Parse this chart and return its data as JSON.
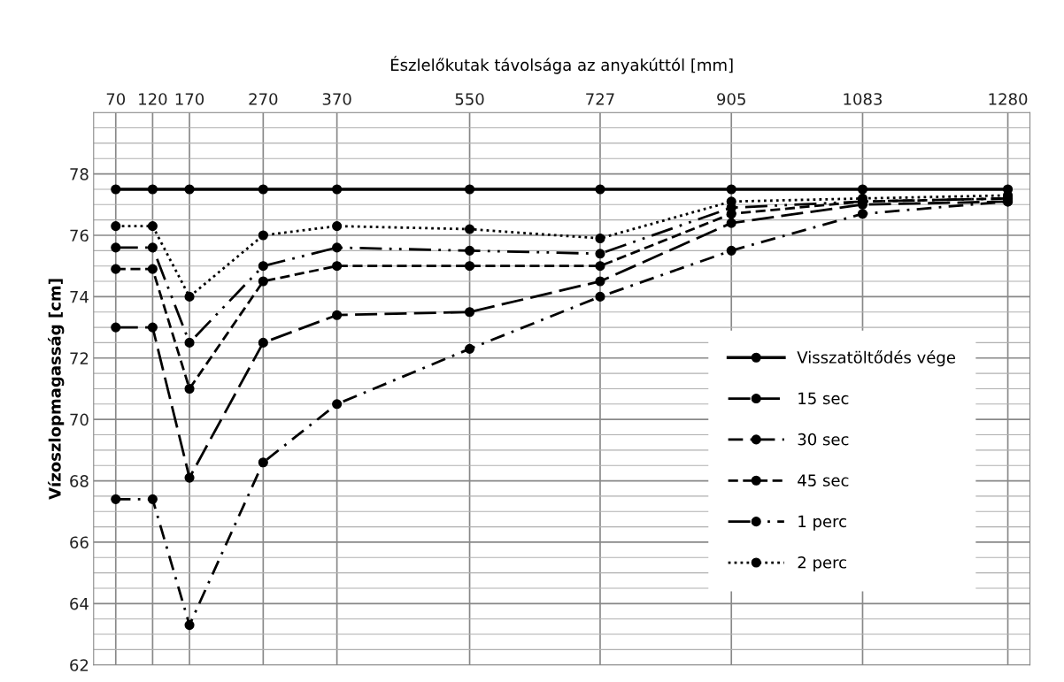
{
  "chart_data": {
    "type": "line",
    "xlabel": "Észlelőkutak távolsága az anyakúttól [mm]",
    "ylabel": "Vízoszlopmagasság [cm]",
    "x": [
      70,
      120,
      170,
      270,
      370,
      550,
      727,
      905,
      1083,
      1280
    ],
    "xlim": [
      40,
      1310
    ],
    "xticks": [
      70,
      120,
      170,
      270,
      370,
      550,
      727,
      905,
      1083,
      1280
    ],
    "ylim": [
      62,
      80
    ],
    "yticks": [
      62,
      64,
      66,
      68,
      70,
      72,
      74,
      76,
      78
    ],
    "grid": true,
    "legend": "lower right",
    "marker": "circle",
    "series": [
      {
        "name": "Visszatöltődés vége",
        "color": "#000000",
        "line_style": "solid",
        "values": [
          77.5,
          77.5,
          77.5,
          77.5,
          77.5,
          77.5,
          77.5,
          77.5,
          77.5,
          77.5
        ]
      },
      {
        "name": "15 sec",
        "color": "#000000",
        "line_style": "longdash",
        "values": [
          73.0,
          73.0,
          68.1,
          72.5,
          73.4,
          73.5,
          74.5,
          76.4,
          77.0,
          77.1
        ]
      },
      {
        "name": "30 sec",
        "color": "#000000",
        "line_style": "dashdot",
        "values": [
          67.4,
          67.4,
          63.3,
          68.6,
          70.5,
          72.3,
          74.0,
          75.5,
          76.7,
          77.1
        ]
      },
      {
        "name": "45 sec",
        "color": "#000000",
        "line_style": "dashed",
        "values": [
          74.9,
          74.9,
          71.0,
          74.5,
          75.0,
          75.0,
          75.0,
          76.7,
          77.1,
          77.2
        ]
      },
      {
        "name": "1 perc",
        "color": "#000000",
        "line_style": "dashdotdot",
        "values": [
          75.6,
          75.6,
          72.5,
          75.0,
          75.6,
          75.5,
          75.4,
          76.9,
          77.1,
          77.2
        ]
      },
      {
        "name": "2 perc",
        "color": "#000000",
        "line_style": "dotted",
        "values": [
          76.3,
          76.3,
          74.0,
          76.0,
          76.3,
          76.2,
          75.9,
          77.1,
          77.2,
          77.3
        ]
      }
    ]
  }
}
